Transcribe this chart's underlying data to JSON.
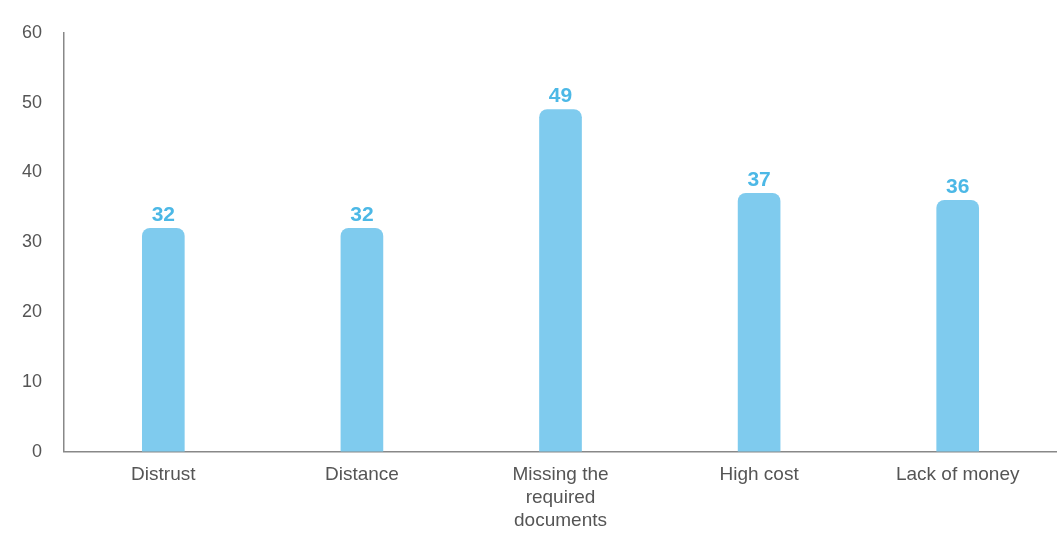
{
  "chart_data": {
    "type": "bar",
    "categories": [
      "Distrust",
      "Distance",
      "Missing the required documents",
      "High cost",
      "Lack of money"
    ],
    "values": [
      32,
      32,
      49,
      37,
      36
    ],
    "color": "#7fcbee",
    "ylim": [
      0,
      60
    ],
    "yticks": [
      0,
      10,
      20,
      30,
      40,
      50,
      60
    ],
    "grid": false,
    "legend": false,
    "data_labels": true
  }
}
